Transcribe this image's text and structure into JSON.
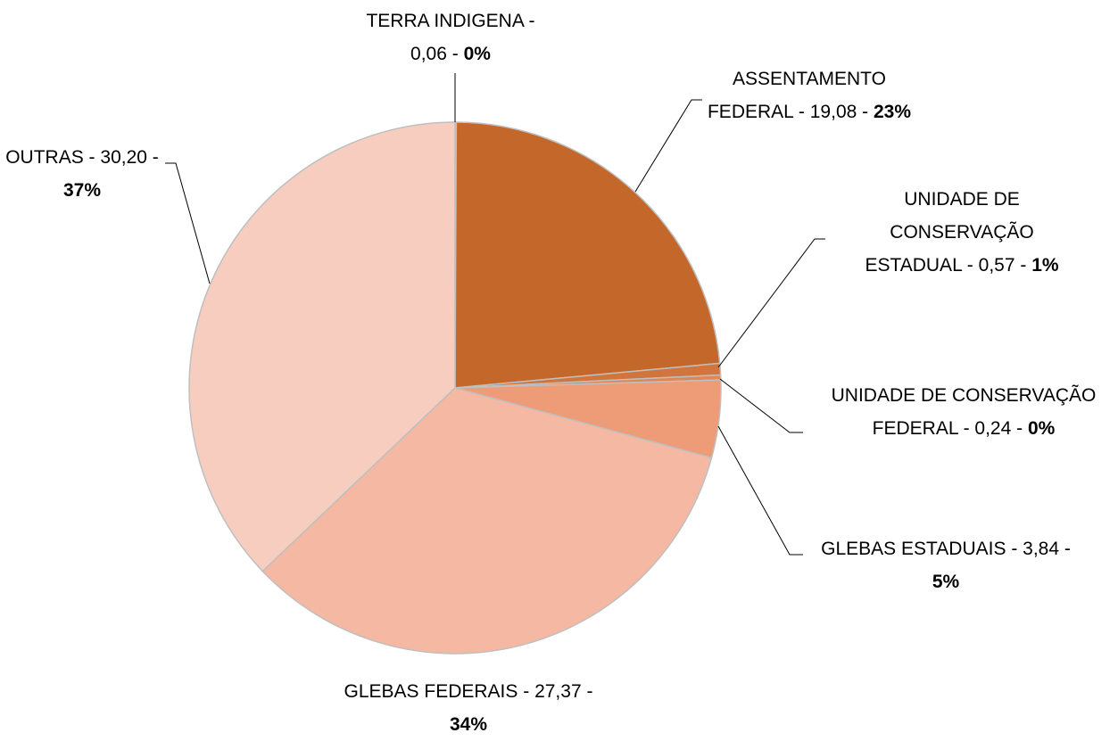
{
  "chart_data": {
    "type": "pie",
    "categories": [
      "TERRA INDIGENA",
      "ASSENTAMENTO FEDERAL",
      "UNIDADE DE CONSERVAÇÃO ESTADUAL",
      "UNIDADE DE CONSERVAÇÃO FEDERAL",
      "GLEBAS ESTADUAIS",
      "GLEBAS FEDERAIS",
      "OUTRAS"
    ],
    "values": [
      0.06,
      19.08,
      0.57,
      0.24,
      3.84,
      27.37,
      30.2
    ],
    "value_labels": [
      "0,06",
      "19,08",
      "0,57",
      "0,24",
      "3,84",
      "27,37",
      "30,20"
    ],
    "percentages": [
      0,
      23,
      1,
      0,
      5,
      34,
      37
    ],
    "percentage_labels": [
      "0%",
      "23%",
      "1%",
      "0%",
      "5%",
      "34%",
      "37%"
    ],
    "label_separator": " - ",
    "colors": [
      "#a0522d",
      "#c4672a",
      "#d2753c",
      "#de8656",
      "#ee9c78",
      "#f4b8a3",
      "#f7cdc0"
    ]
  }
}
